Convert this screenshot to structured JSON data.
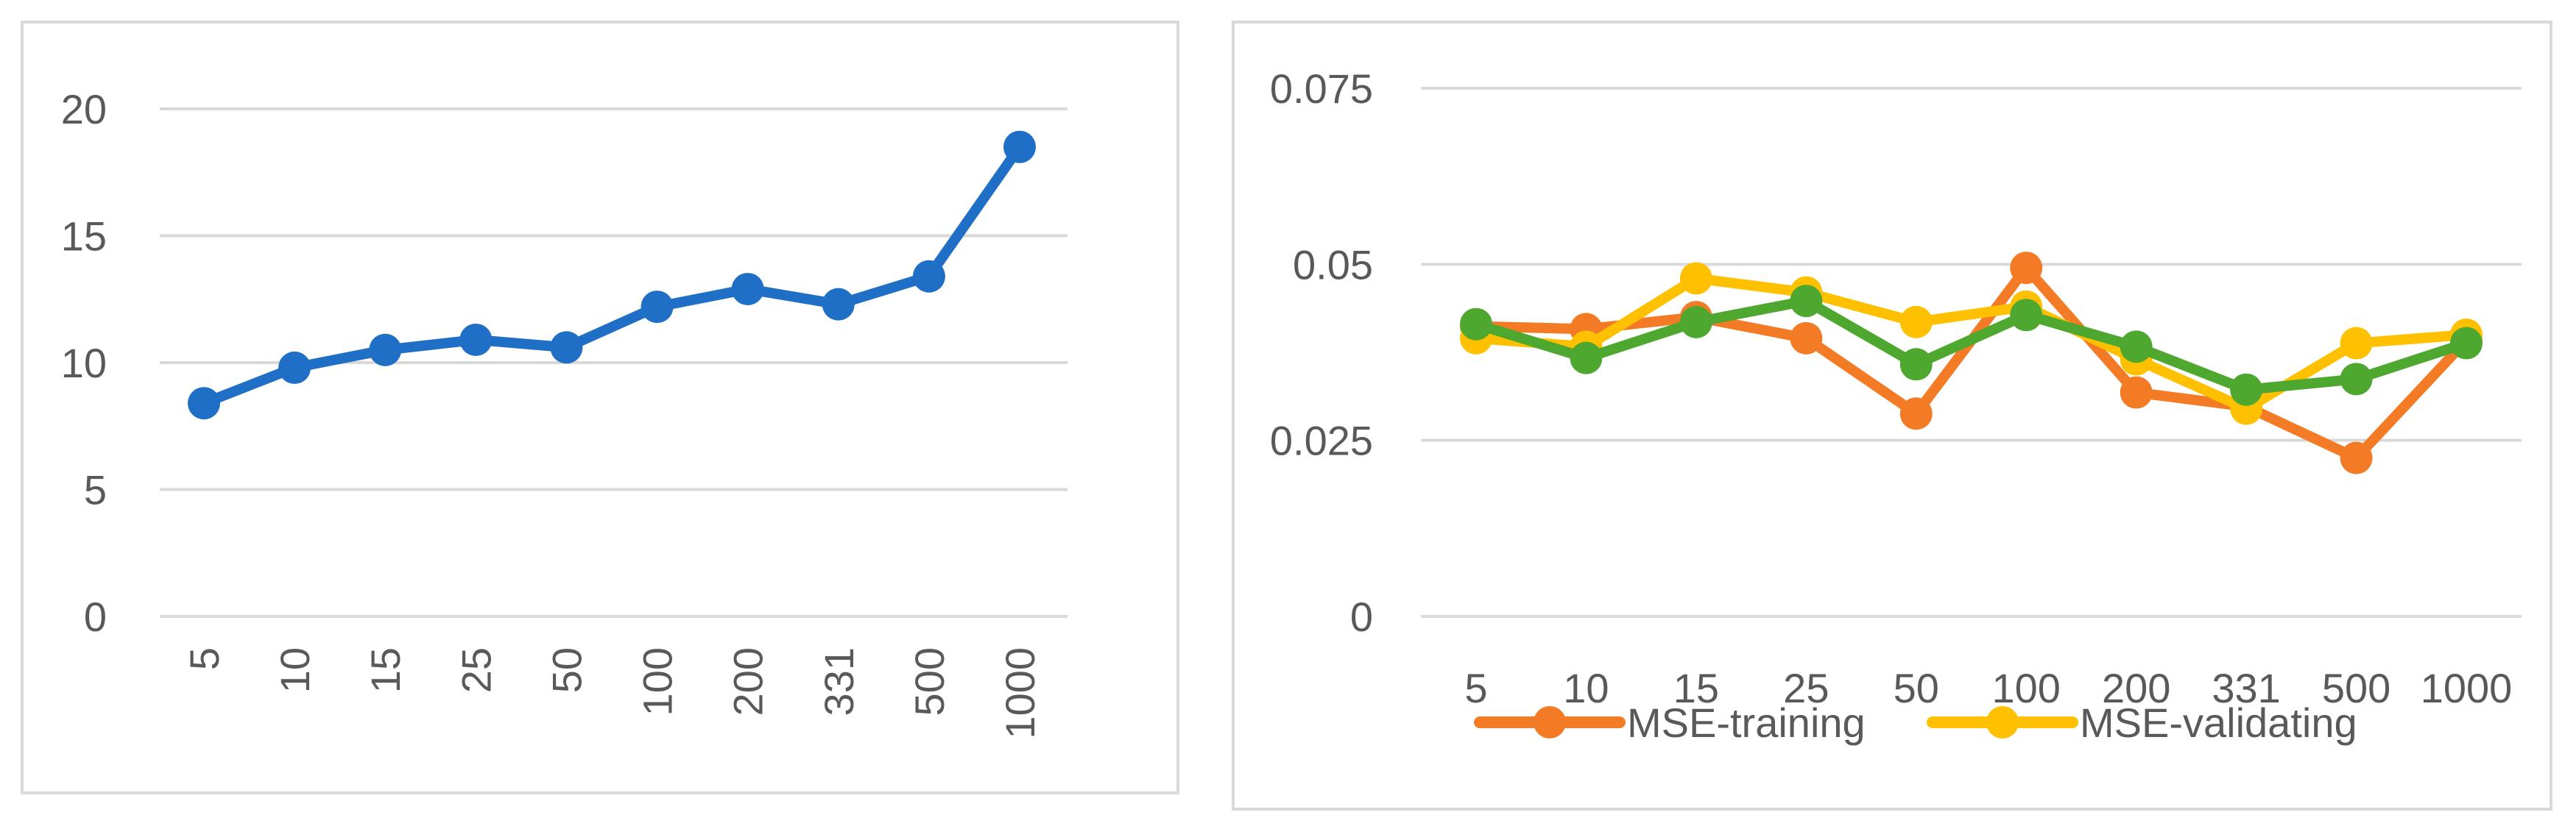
{
  "chart_data": [
    {
      "type": "line",
      "categories": [
        "5",
        "10",
        "15",
        "25",
        "50",
        "100",
        "200",
        "331",
        "500",
        "1000"
      ],
      "series": [
        {
          "color": "#1f6fc6",
          "values": [
            8.4,
            9.8,
            10.5,
            10.9,
            10.6,
            12.2,
            12.9,
            12.3,
            13.4,
            18.5
          ]
        }
      ],
      "yticks": [
        "0",
        "5",
        "10",
        "15",
        "20"
      ],
      "ylim": [
        0,
        20
      ],
      "grid": true,
      "x_tick_rotation": "vertical"
    },
    {
      "type": "line",
      "categories": [
        "5",
        "10",
        "15",
        "25",
        "50",
        "100",
        "200",
        "331",
        "500",
        "1000"
      ],
      "series": [
        {
          "name": "MSE-training",
          "color": "#f47b26",
          "values": [
            0.0412,
            0.0408,
            0.0425,
            0.0395,
            0.0288,
            0.0495,
            0.0318,
            0.0298,
            0.0225,
            0.0392
          ]
        },
        {
          "name": "MSE-validating",
          "color": "#ffc000",
          "values": [
            0.0395,
            0.0383,
            0.048,
            0.046,
            0.0418,
            0.044,
            0.0365,
            0.0295,
            0.0388,
            0.04
          ]
        },
        {
          "color": "#4ea72e",
          "values": [
            0.0415,
            0.0367,
            0.0418,
            0.0448,
            0.0358,
            0.0428,
            0.0383,
            0.0322,
            0.0337,
            0.0388
          ]
        }
      ],
      "yticks": [
        "0",
        "0.025",
        "0.05",
        "0.075"
      ],
      "ylim": [
        0,
        0.075
      ],
      "grid": true,
      "legend": "bottom"
    }
  ]
}
